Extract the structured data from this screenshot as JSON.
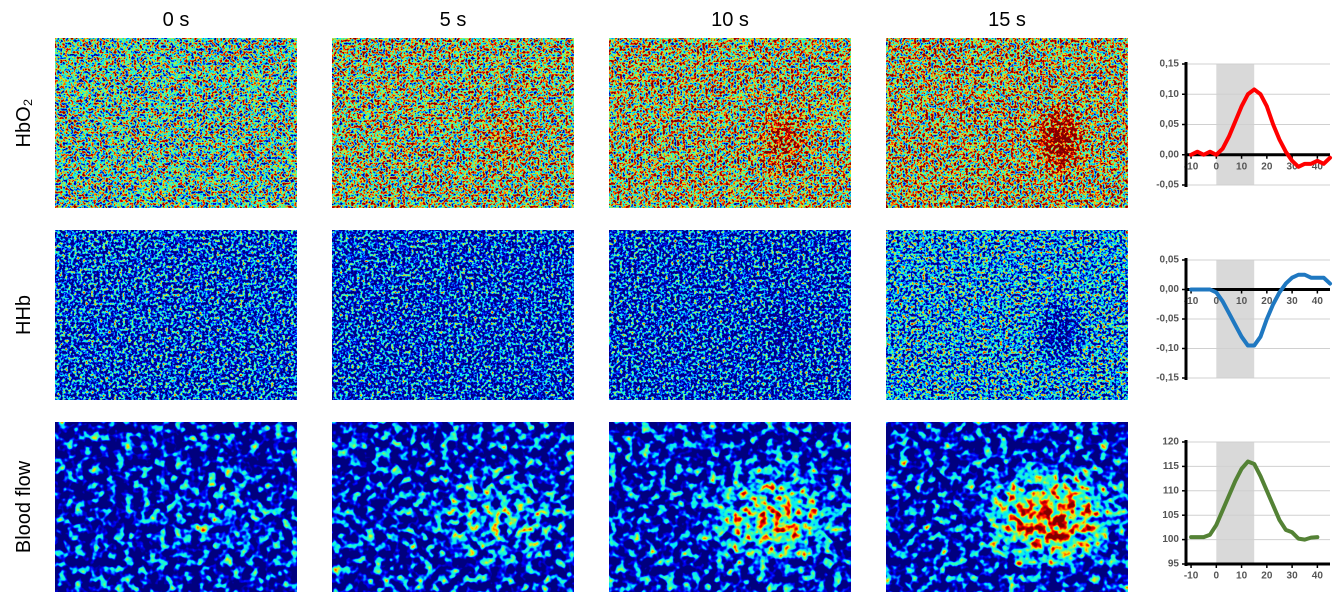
{
  "column_labels": [
    "0 s",
    "5 s",
    "10 s",
    "15 s"
  ],
  "row_labels": [
    "HbO₂",
    "HHb",
    "Blood flow"
  ],
  "chart_data": [
    {
      "type": "line",
      "xlim": [
        -12,
        45
      ],
      "ylim": [
        -0.05,
        0.15
      ],
      "shade": [
        0,
        15
      ],
      "xticks": [
        -10,
        0,
        10,
        20,
        30,
        40
      ],
      "yticks": [
        {
          "value": -0.05,
          "label": "-0,05"
        },
        {
          "value": 0,
          "label": "0,00"
        },
        {
          "value": 0.05,
          "label": "0,05"
        },
        {
          "value": 0.1,
          "label": "0,10"
        },
        {
          "value": 0.15,
          "label": "0,15"
        }
      ],
      "grid": true,
      "x": [
        -10,
        -7.5,
        -5,
        -2.5,
        0,
        2.5,
        5,
        7.5,
        10,
        12.5,
        15,
        17.5,
        20,
        22.5,
        25,
        27.5,
        30,
        32.5,
        35,
        37.5,
        40,
        42.5,
        45
      ],
      "series": [
        {
          "color": "#ff0000",
          "values": [
            0,
            0.005,
            0,
            0.005,
            0,
            0.01,
            0.03,
            0.055,
            0.08,
            0.1,
            0.108,
            0.1,
            0.08,
            0.05,
            0.025,
            0.005,
            -0.01,
            -0.02,
            -0.015,
            -0.015,
            -0.01,
            -0.015,
            -0.005
          ]
        }
      ]
    },
    {
      "type": "line",
      "xlim": [
        -12,
        45
      ],
      "ylim": [
        -0.15,
        0.05
      ],
      "shade": [
        0,
        15
      ],
      "xticks": [
        -10,
        0,
        10,
        20,
        30,
        40
      ],
      "yticks": [
        {
          "value": -0.15,
          "label": "-0,15"
        },
        {
          "value": -0.1,
          "label": "-0,10"
        },
        {
          "value": -0.05,
          "label": "-0,05"
        },
        {
          "value": 0,
          "label": "0,00"
        },
        {
          "value": 0.05,
          "label": "0,05"
        }
      ],
      "grid": true,
      "x": [
        -10,
        -7.5,
        -5,
        -2.5,
        0,
        2.5,
        5,
        7.5,
        10,
        12.5,
        15,
        17.5,
        20,
        22.5,
        25,
        27.5,
        30,
        32.5,
        35,
        37.5,
        40,
        42.5,
        45
      ],
      "series": [
        {
          "color": "#1f78c1",
          "values": [
            0,
            0,
            0,
            0,
            -0.005,
            -0.02,
            -0.04,
            -0.06,
            -0.08,
            -0.095,
            -0.095,
            -0.08,
            -0.05,
            -0.025,
            -0.005,
            0.01,
            0.02,
            0.025,
            0.025,
            0.02,
            0.02,
            0.02,
            0.01
          ]
        }
      ]
    },
    {
      "type": "line",
      "xlim": [
        -12,
        45
      ],
      "ylim": [
        95,
        120
      ],
      "shade": [
        0,
        15
      ],
      "xticks": [
        -10,
        0,
        10,
        20,
        30,
        40
      ],
      "yticks": [
        95,
        100,
        105,
        110,
        115,
        120
      ],
      "grid": true,
      "x": [
        -10,
        -7.5,
        -5,
        -2.5,
        0,
        2.5,
        5,
        7.5,
        10,
        12.5,
        15,
        17.5,
        20,
        22.5,
        25,
        27.5,
        30,
        32.5,
        35,
        37.5,
        40
      ],
      "series": [
        {
          "color": "#548235",
          "values": [
            100.5,
            100.5,
            100.5,
            101,
            103,
            106,
            109,
            112,
            114.5,
            116,
            115.5,
            113,
            110,
            107,
            104,
            102,
            101.5,
            100.2,
            100,
            100.4,
            100.5
          ]
        }
      ]
    }
  ]
}
